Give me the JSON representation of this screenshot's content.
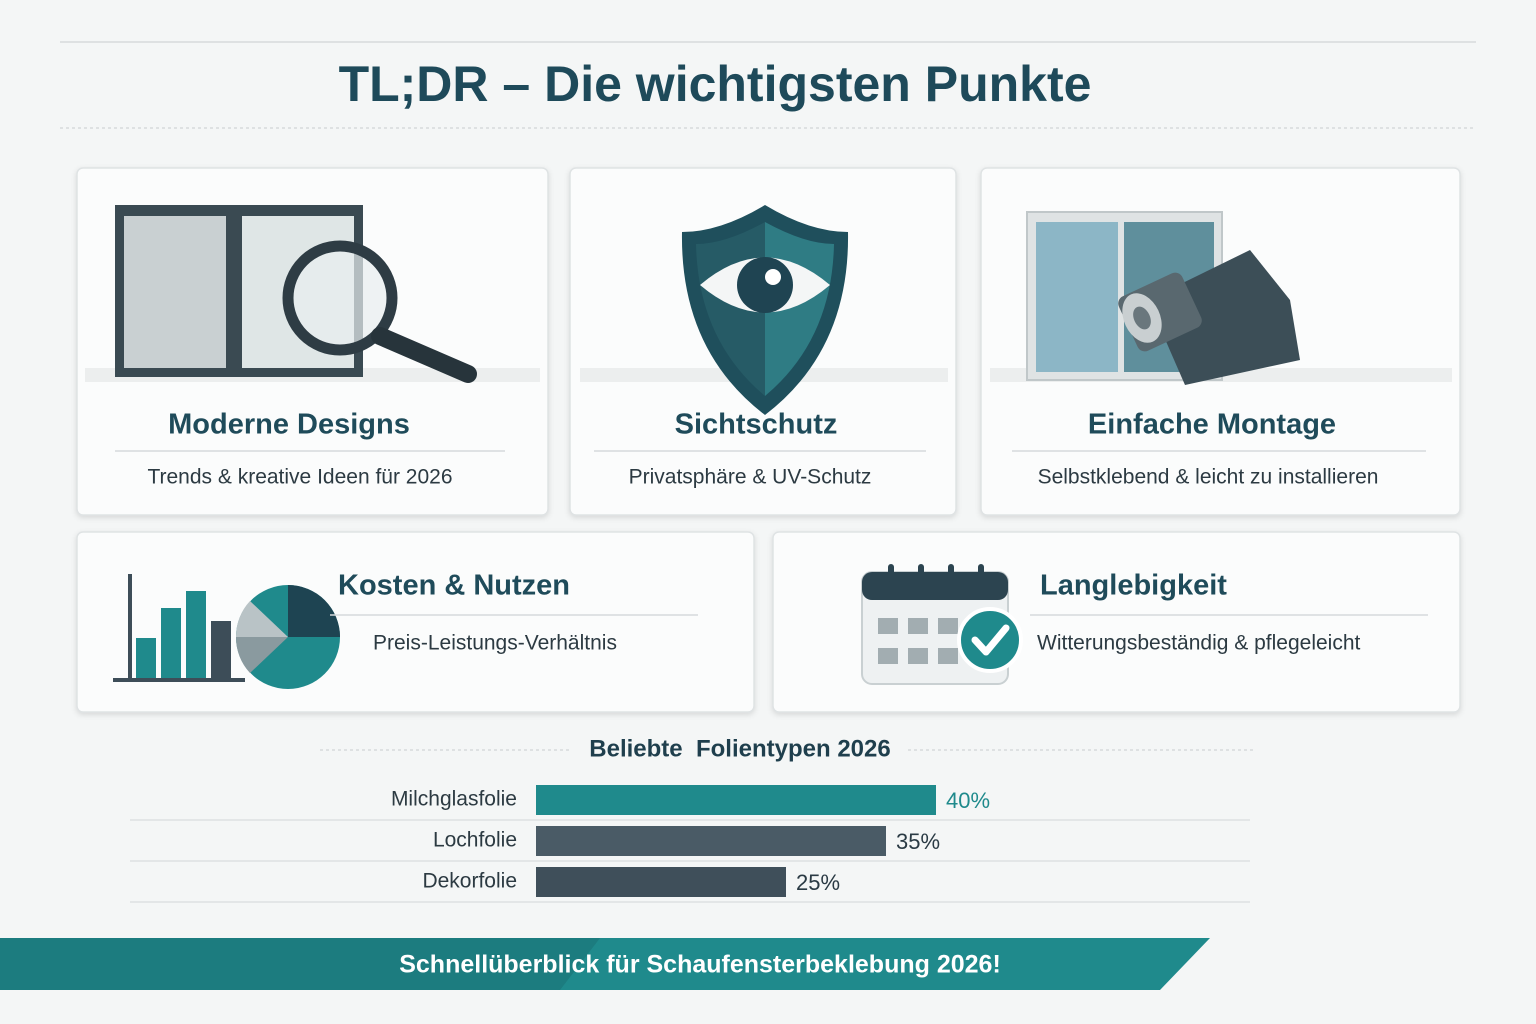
{
  "header": {
    "title": "TL;DR – Die wichtigsten Punkte"
  },
  "cards": [
    {
      "title": "Moderne Designs",
      "subtitle": "Trends & kreative Ideen für 2026"
    },
    {
      "title": "Sichtschutz",
      "subtitle": "Privatsphäre & UV-Schutz"
    },
    {
      "title": "Einfache Montage",
      "subtitle": "Selbstklebend & leicht zu installieren"
    },
    {
      "title": "Kosten & Nutzen",
      "subtitle": "Preis-Leistungs-Verhältnis"
    },
    {
      "title": "Langlebigkeit",
      "subtitle": "Witterungsbeständig & pflegeleicht"
    }
  ],
  "chart_data": {
    "type": "bar",
    "orientation": "horizontal",
    "title": "Beliebte  Folientypen 2026",
    "categories": [
      "Milchglasfolie",
      "Lochfolie",
      "Dekorfolie"
    ],
    "values": [
      40,
      35,
      25
    ],
    "value_labels": [
      "40%",
      "35%",
      "25%"
    ],
    "colors": [
      "#1f8a8c",
      "#4a5b66",
      "#3f4f5a"
    ]
  },
  "footer": {
    "text": "Schnellüberblick für Schaufensterbeklebung 2026!"
  }
}
